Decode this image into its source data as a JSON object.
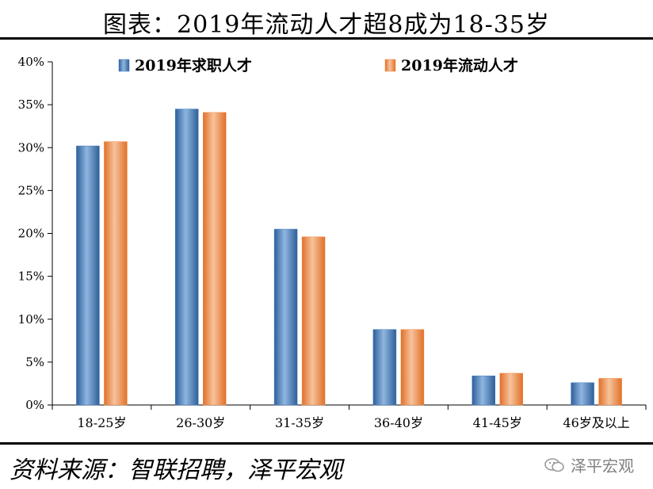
{
  "title": "图表：2019年流动人才超8成为18-35岁",
  "source": "资料来源：智联招聘，泽平宏观",
  "watermark": "泽平宏观",
  "colors": {
    "series1": "#3f7fc5",
    "series2": "#f08a45"
  },
  "chart_data": {
    "type": "bar",
    "categories": [
      "18-25岁",
      "26-30岁",
      "31-35岁",
      "36-40岁",
      "41-45岁",
      "46岁及以上"
    ],
    "series": [
      {
        "name": "2019年求职人才",
        "values": [
          30.2,
          34.5,
          20.5,
          8.8,
          3.4,
          2.6
        ]
      },
      {
        "name": "2019年流动人才",
        "values": [
          30.7,
          34.1,
          19.6,
          8.8,
          3.7,
          3.1
        ]
      }
    ],
    "yticks": [
      "0%",
      "5%",
      "10%",
      "15%",
      "20%",
      "25%",
      "30%",
      "35%",
      "40%"
    ],
    "ylim": [
      0,
      40
    ],
    "legend": "top",
    "grid": false
  }
}
